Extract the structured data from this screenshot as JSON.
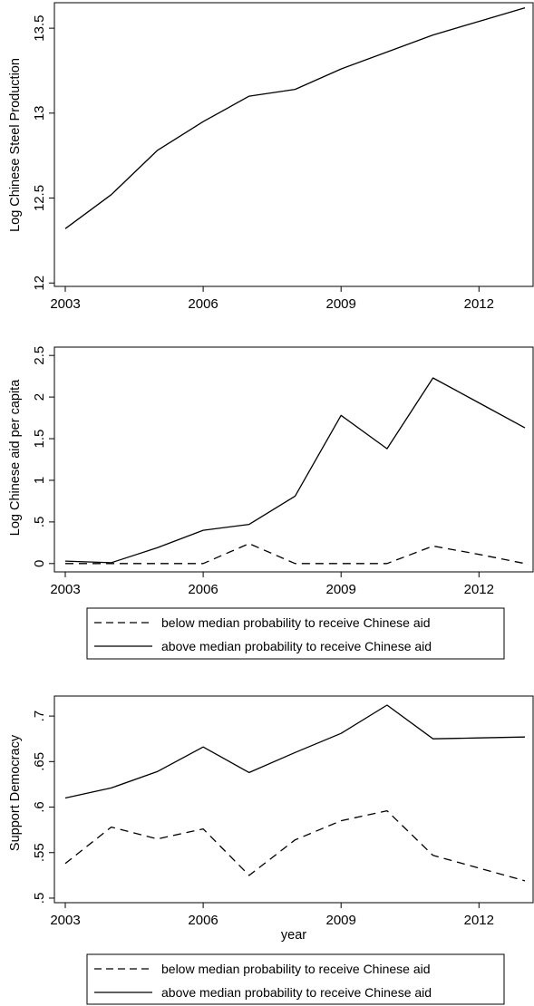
{
  "chart_data": [
    {
      "type": "line",
      "title": "",
      "xlabel": "",
      "ylabel": "Log Chinese Steel Production",
      "x": [
        2003,
        2004,
        2005,
        2006,
        2007,
        2008,
        2009,
        2010,
        2011,
        2012,
        2013
      ],
      "xticks": [
        "2003",
        "2006",
        "2009",
        "2012"
      ],
      "yticks": [
        "12",
        "12.5",
        "13",
        "13.5"
      ],
      "xlim": [
        2003,
        2013
      ],
      "ylim": [
        11.98,
        13.65
      ],
      "grid": false,
      "series": [
        {
          "style": "solid",
          "values": [
            12.32,
            12.52,
            12.78,
            12.95,
            13.1,
            13.14,
            13.26,
            13.36,
            13.46,
            13.54,
            13.62
          ]
        }
      ]
    },
    {
      "type": "line",
      "title": "",
      "xlabel": "",
      "ylabel": "Log Chinese aid per capita",
      "x": [
        2003,
        2004,
        2005,
        2006,
        2007,
        2008,
        2009,
        2010,
        2011,
        2012,
        2013
      ],
      "xticks": [
        "2003",
        "2006",
        "2009",
        "2012"
      ],
      "yticks": [
        "0",
        ".5",
        "1",
        "1.5",
        "2",
        "2.5"
      ],
      "xlim": [
        2003,
        2013
      ],
      "ylim": [
        -0.1,
        2.6
      ],
      "grid": false,
      "legend_position": "bottom",
      "series": [
        {
          "name": "below median probability to receive Chinese aid",
          "style": "dashed",
          "values": [
            0.0,
            0.0,
            0.0,
            0.0,
            0.24,
            0.0,
            0.0,
            0.0,
            0.21,
            0.11,
            0.0
          ]
        },
        {
          "name": "above median probability to receive Chinese aid",
          "style": "solid",
          "values": [
            0.03,
            0.01,
            0.19,
            0.4,
            0.47,
            0.81,
            1.78,
            1.38,
            2.23,
            1.93,
            1.63
          ]
        }
      ]
    },
    {
      "type": "line",
      "title": "",
      "xlabel": "year",
      "ylabel": "Support Democracy",
      "x": [
        2003,
        2004,
        2005,
        2006,
        2007,
        2008,
        2009,
        2010,
        2011,
        2012,
        2013
      ],
      "xticks": [
        "2003",
        "2006",
        "2009",
        "2012"
      ],
      "yticks": [
        ".5",
        ".55",
        ".6",
        ".65",
        ".7"
      ],
      "xlim": [
        2003,
        2013
      ],
      "ylim": [
        0.495,
        0.722
      ],
      "grid": false,
      "legend_position": "bottom",
      "series": [
        {
          "name": "below median probability to receive Chinese aid",
          "style": "dashed",
          "values": [
            0.538,
            0.578,
            0.565,
            0.576,
            0.525,
            0.564,
            0.585,
            0.596,
            0.547,
            0.533,
            0.519
          ]
        },
        {
          "name": "above median probability to receive Chinese aid",
          "style": "solid",
          "values": [
            0.61,
            0.621,
            0.639,
            0.666,
            0.638,
            0.66,
            0.681,
            0.712,
            0.675,
            0.676,
            0.677
          ]
        }
      ]
    }
  ]
}
